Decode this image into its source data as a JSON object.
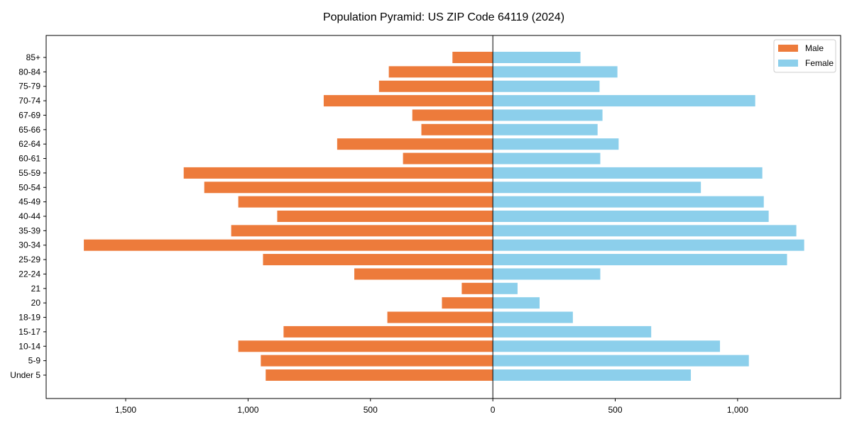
{
  "chart_data": {
    "type": "bar",
    "orientation": "horizontal",
    "title": "Population Pyramid: US ZIP Code 64119 (2024)",
    "xlabel": "",
    "ylabel": "",
    "xlim": [
      -1825,
      1421
    ],
    "xticks": [
      -1500,
      -1000,
      -500,
      0,
      500,
      1000
    ],
    "xtick_labels": [
      "1,500",
      "1,000",
      "500",
      "0",
      "500",
      "1,000"
    ],
    "legend_position": "top-right",
    "categories": [
      "Under 5",
      "5-9",
      "10-14",
      "15-17",
      "18-19",
      "20",
      "21",
      "22-24",
      "25-29",
      "30-34",
      "35-39",
      "40-44",
      "45-49",
      "50-54",
      "55-59",
      "60-61",
      "62-64",
      "65-66",
      "67-69",
      "70-74",
      "75-79",
      "80-84",
      "85+"
    ],
    "series": [
      {
        "name": "Male",
        "color": "#ed7b3b",
        "values": [
          928,
          948,
          1040,
          855,
          431,
          208,
          127,
          566,
          939,
          1671,
          1069,
          881,
          1040,
          1179,
          1263,
          367,
          636,
          292,
          329,
          691,
          465,
          425,
          165
        ]
      },
      {
        "name": "Female",
        "color": "#8ccfeb",
        "values": [
          809,
          1046,
          928,
          647,
          327,
          191,
          101,
          439,
          1202,
          1272,
          1240,
          1127,
          1107,
          850,
          1101,
          439,
          514,
          428,
          448,
          1072,
          436,
          509,
          358
        ]
      }
    ]
  }
}
